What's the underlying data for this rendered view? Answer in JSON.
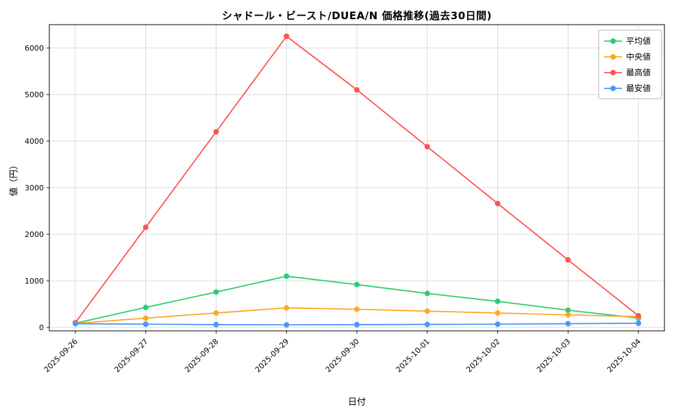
{
  "chart_data": {
    "type": "line",
    "title": "シャドール・ビースト/DUEA/N 価格推移(過去30日間)",
    "xlabel": "日付",
    "ylabel": "値（円）",
    "categories": [
      "2025-09-26",
      "2025-09-27",
      "2025-09-28",
      "2025-09-29",
      "2025-09-30",
      "2025-10-01",
      "2025-10-02",
      "2025-10-03",
      "2025-10-04"
    ],
    "series": [
      {
        "name": "平均値",
        "color": "#2ecc71",
        "values": [
          90,
          430,
          760,
          1100,
          920,
          730,
          560,
          370,
          200
        ]
      },
      {
        "name": "中央値",
        "color": "#ffa726",
        "values": [
          85,
          200,
          310,
          420,
          390,
          350,
          310,
          270,
          230
        ]
      },
      {
        "name": "最高値",
        "color": "#ff5252",
        "values": [
          100,
          2150,
          4200,
          6250,
          5100,
          3880,
          2660,
          1450,
          250
        ]
      },
      {
        "name": "最安値",
        "color": "#4d94ff",
        "values": [
          80,
          70,
          60,
          55,
          60,
          65,
          70,
          80,
          90
        ]
      }
    ],
    "ylim": [
      0,
      6500
    ],
    "yticks": [
      0,
      1000,
      2000,
      3000,
      4000,
      5000,
      6000
    ],
    "grid": true,
    "legend_position": "top-right",
    "grid_color": "#cfcfcf",
    "axis_color": "#000000"
  }
}
